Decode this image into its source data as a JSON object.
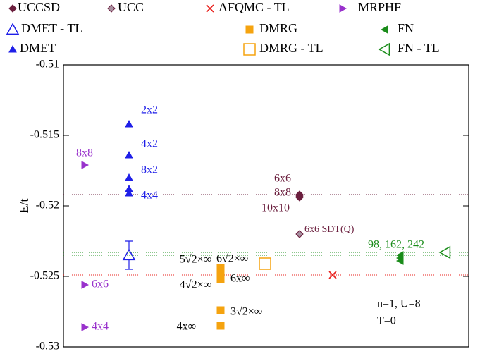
{
  "chart_data": {
    "type": "scatter",
    "y_label": "E/t",
    "ylim": [
      -0.53,
      -0.51
    ],
    "yticks": [
      -0.53,
      -0.525,
      -0.52,
      -0.515,
      -0.51
    ],
    "annotations": [
      "n=1, U=8",
      "T=0"
    ],
    "series": [
      {
        "name": "UCCSD",
        "color": "#6b1f3e",
        "marker": "diamond",
        "values": [
          -0.5192,
          -0.5193,
          -0.5194
        ],
        "labels": [
          "6x6",
          "8x8",
          "10x10"
        ],
        "hline": true
      },
      {
        "name": "UCC",
        "color": "#6b1f3e",
        "marker": "diamond-gray",
        "values": [
          -0.522
        ],
        "labels": [
          "6x6 SDT(Q)"
        ]
      },
      {
        "name": "AFQMC - TL",
        "color": "#e8201c",
        "marker": "x",
        "values": [
          -0.5249
        ],
        "hline": true
      },
      {
        "name": "MRPHF",
        "color": "#9932cc",
        "marker": "triangle-right",
        "values": [
          -0.5171,
          -0.5256,
          -0.5286
        ],
        "labels": [
          "8x8",
          "6x6",
          "4x4"
        ]
      },
      {
        "name": "DMET - TL",
        "color": "#1f1fe8",
        "marker": "triangle-up-open",
        "values": [
          -0.5235
        ],
        "errors": [
          0.001
        ],
        "hline": true
      },
      {
        "name": "DMRG",
        "color": "#f5a30f",
        "marker": "square",
        "values": [
          -0.5244,
          -0.5246,
          -0.5249,
          -0.5252,
          -0.5274,
          -0.5285
        ],
        "labels": [
          "6√2×∞",
          "5√2×∞",
          "6x∞",
          "4√2×∞",
          "3√2×∞",
          "4x∞"
        ]
      },
      {
        "name": "FN",
        "color": "#1a8c1a",
        "marker": "triangle-left",
        "values": [
          -0.5235,
          -0.5237,
          -0.5239
        ],
        "label": "98, 162, 242",
        "hline": true
      },
      {
        "name": "DMET",
        "color": "#1f1fe8",
        "marker": "triangle-up",
        "values": [
          -0.5142,
          -0.5164,
          -0.518,
          -0.5188,
          -0.5191
        ],
        "labels": [
          "2x2",
          "4x2",
          "8x2",
          "4x4",
          null
        ]
      },
      {
        "name": "DMRG - TL",
        "color": "#f5a30f",
        "marker": "square-open",
        "values": [
          -0.5241
        ],
        "errors": [
          0.0001
        ]
      },
      {
        "name": "FN - TL",
        "color": "#1a8c1a",
        "marker": "triangle-left-open",
        "values": [
          -0.5233
        ],
        "hline": true
      }
    ]
  }
}
